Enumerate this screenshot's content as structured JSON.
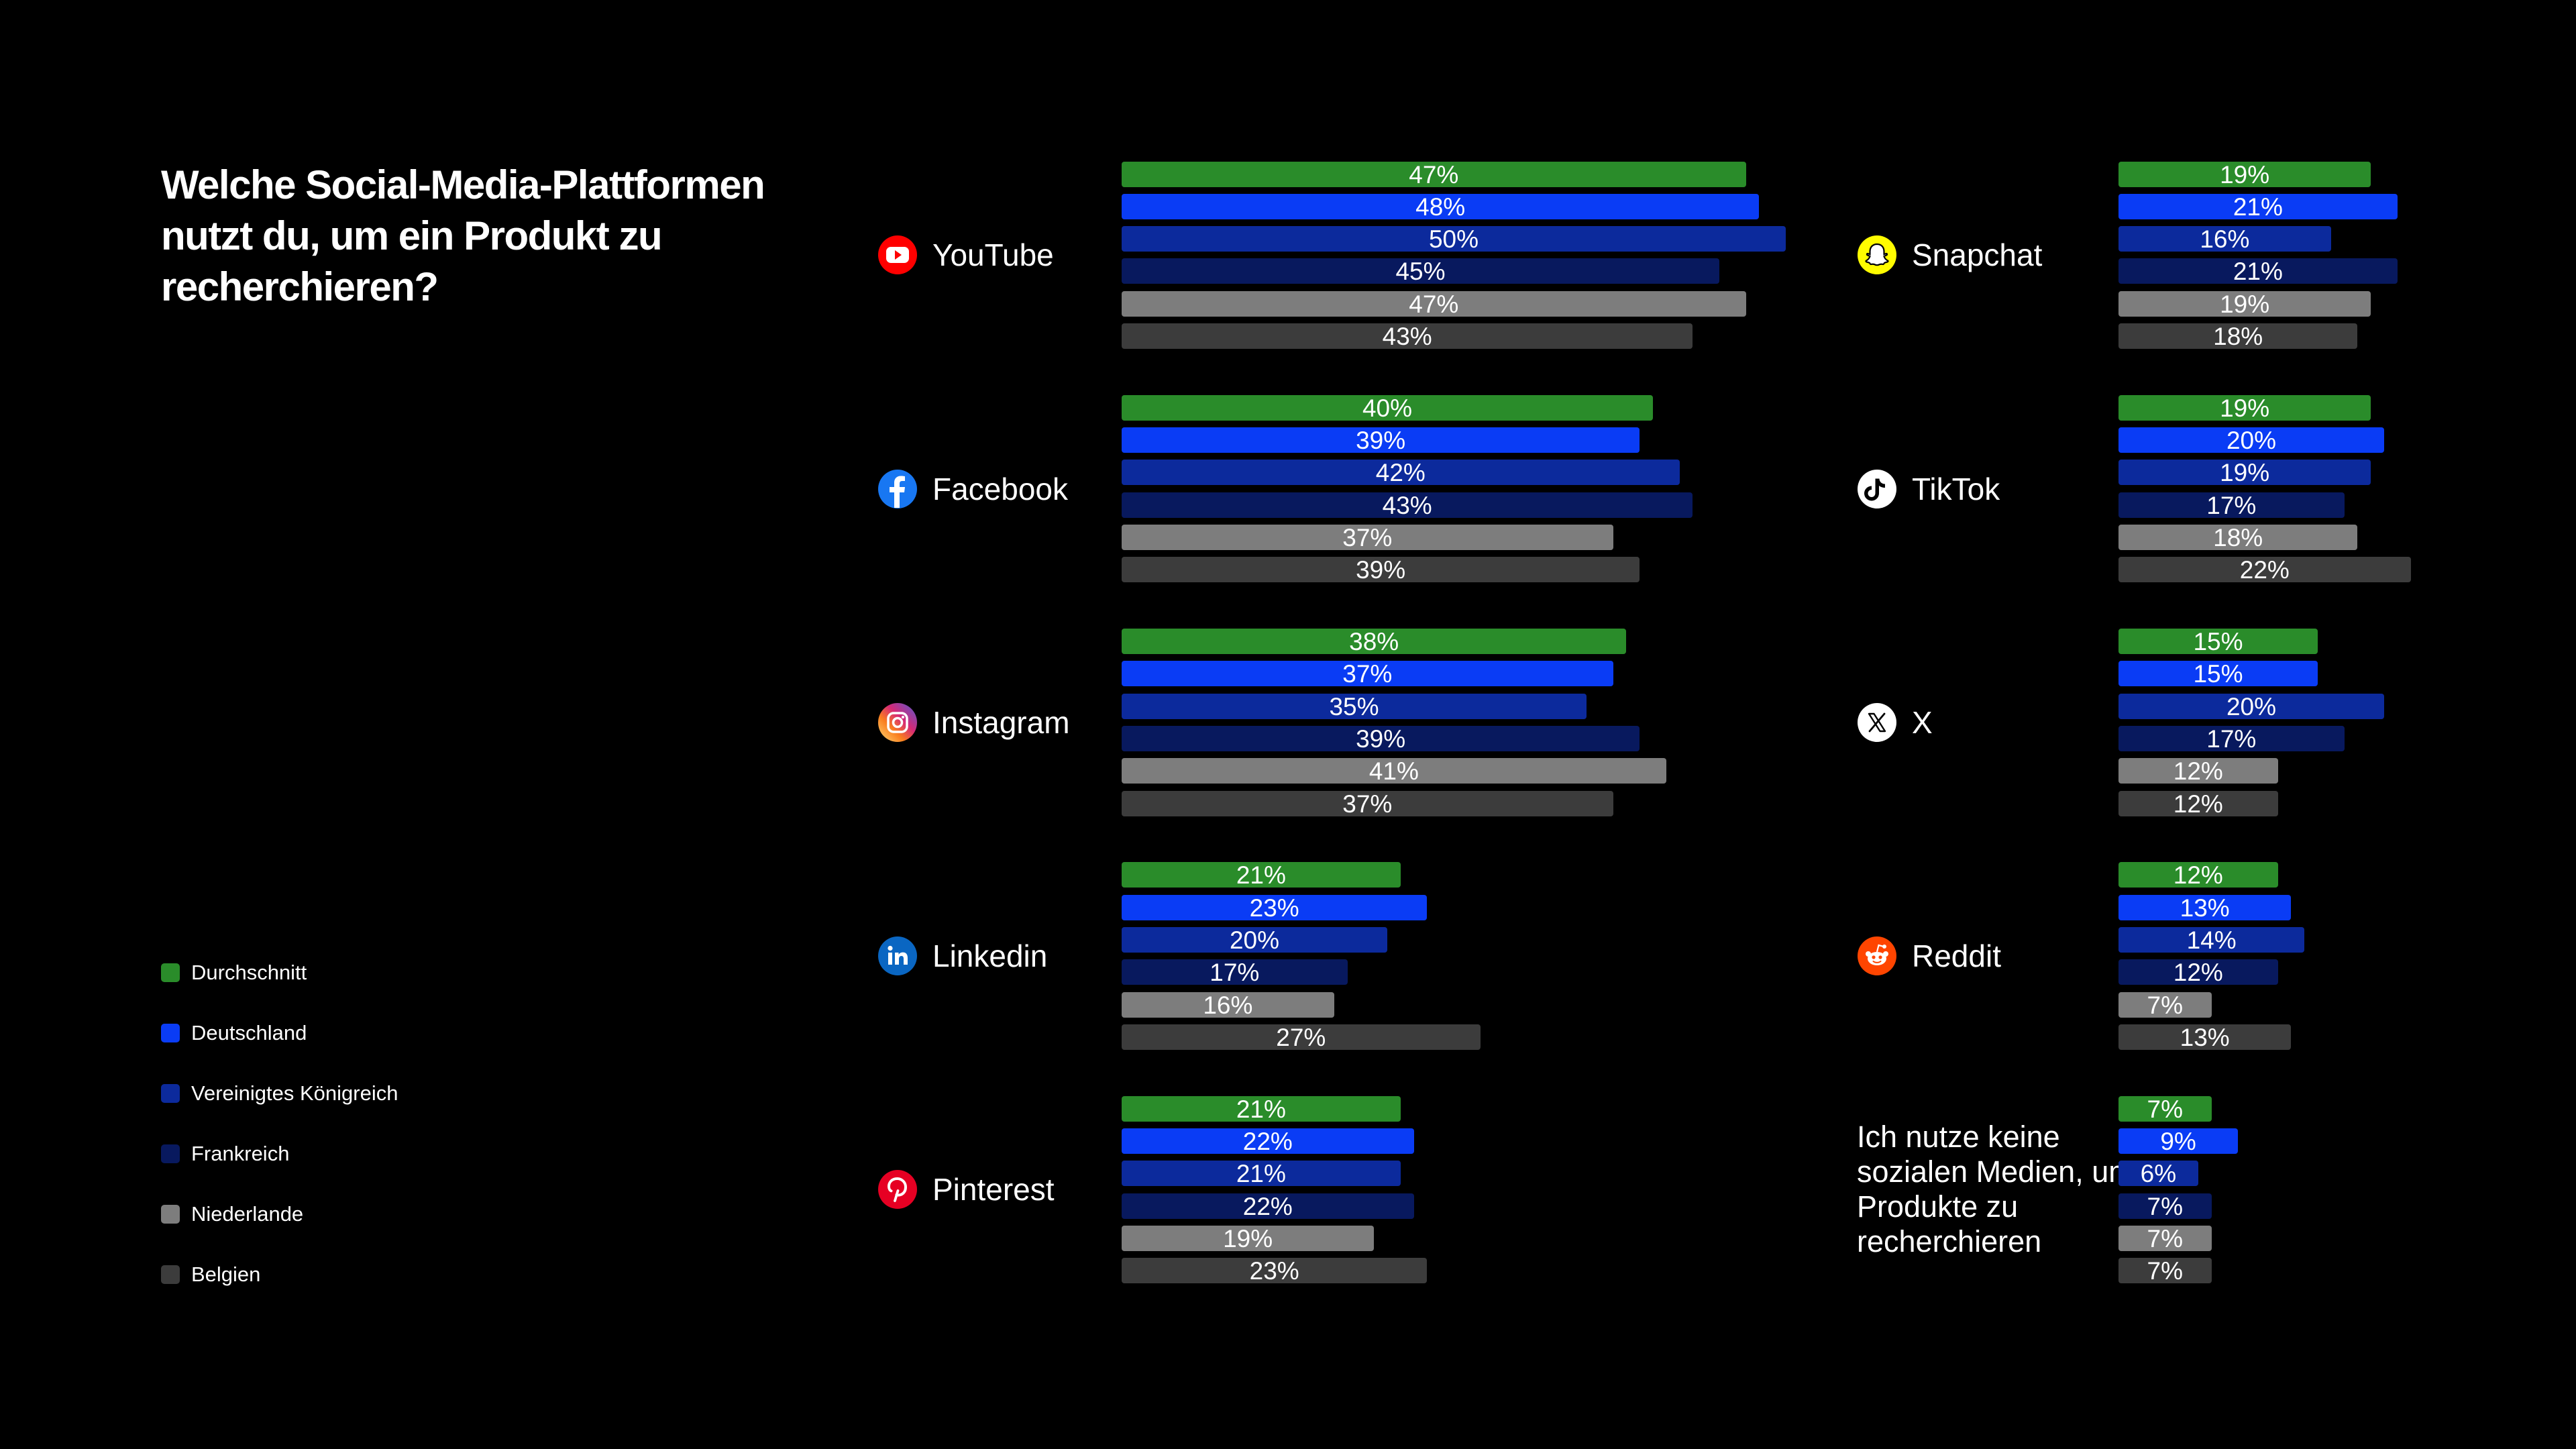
{
  "title": "Welche Social-Media-Plattformen nutzt du, um ein Produkt zu recherchieren?",
  "legend": [
    {
      "label": "Durchschnitt",
      "color": "#2a8c2a"
    },
    {
      "label": "Deutschland",
      "color": "#0a3cf5"
    },
    {
      "label": "Vereinigtes Königreich",
      "color": "#0c2a9c"
    },
    {
      "label": "Frankreich",
      "color": "#08195e"
    },
    {
      "label": "Niederlande",
      "color": "#7d7d7d"
    },
    {
      "label": "Belgien",
      "color": "#3c3c3c"
    }
  ],
  "chart_data": {
    "type": "bar",
    "orientation": "horizontal",
    "unit": "%",
    "series_names": [
      "Durchschnitt",
      "Deutschland",
      "Vereinigtes Königreich",
      "Frankreich",
      "Niederlande",
      "Belgien"
    ],
    "groups": [
      {
        "label": "YouTube",
        "icon": "youtube-icon",
        "values": [
          47,
          48,
          50,
          45,
          47,
          43
        ]
      },
      {
        "label": "Facebook",
        "icon": "facebook-icon",
        "values": [
          40,
          39,
          42,
          43,
          37,
          39
        ]
      },
      {
        "label": "Instagram",
        "icon": "instagram-icon",
        "values": [
          38,
          37,
          35,
          39,
          41,
          37
        ]
      },
      {
        "label": "Linkedin",
        "icon": "linkedin-icon",
        "values": [
          21,
          23,
          20,
          17,
          16,
          27
        ]
      },
      {
        "label": "Pinterest",
        "icon": "pinterest-icon",
        "values": [
          21,
          22,
          21,
          22,
          19,
          23
        ]
      },
      {
        "label": "Snapchat",
        "icon": "snapchat-icon",
        "values": [
          19,
          21,
          16,
          21,
          19,
          18
        ]
      },
      {
        "label": "TikTok",
        "icon": "tiktok-icon",
        "values": [
          19,
          20,
          19,
          17,
          18,
          22
        ]
      },
      {
        "label": "X",
        "icon": "x-icon",
        "values": [
          15,
          15,
          20,
          17,
          12,
          12
        ]
      },
      {
        "label": "Reddit",
        "icon": "reddit-icon",
        "values": [
          12,
          13,
          14,
          12,
          7,
          13
        ]
      },
      {
        "label": "Ich nutze keine sozialen Medien, um Produkte zu recherchieren",
        "icon": "",
        "values": [
          7,
          9,
          6,
          7,
          7,
          7
        ]
      }
    ]
  }
}
